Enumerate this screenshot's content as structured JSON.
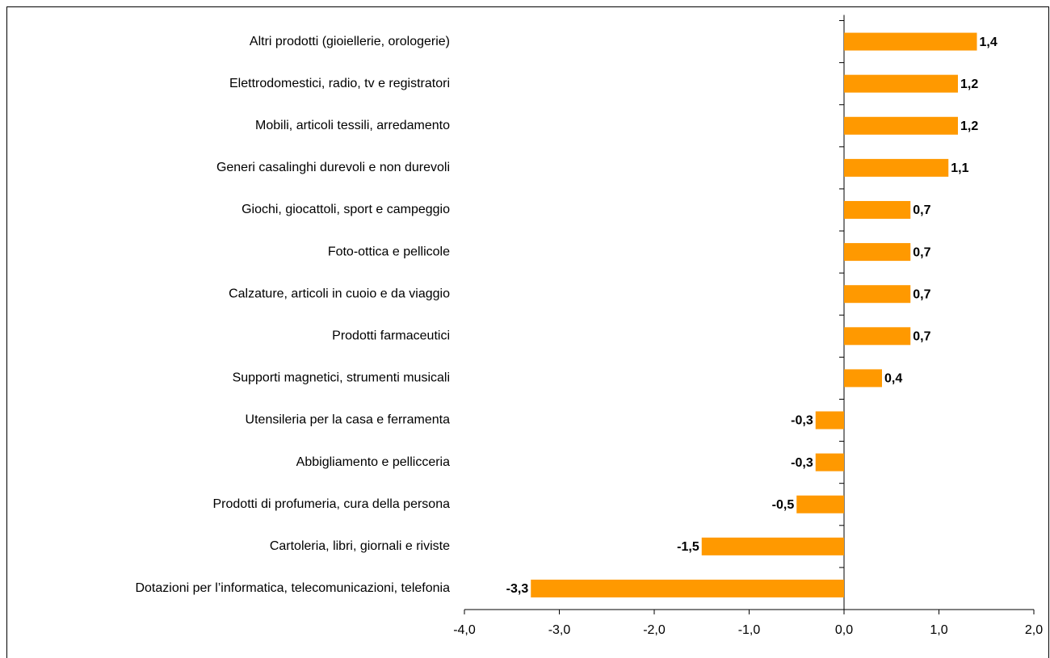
{
  "chart_data": {
    "type": "bar",
    "orientation": "horizontal",
    "categories": [
      "Altri prodotti (gioiellerie, orologerie)",
      "Elettrodomestici, radio, tv e registratori",
      "Mobili, articoli tessili, arredamento",
      "Generi casalinghi durevoli e non durevoli",
      "Giochi, giocattoli, sport e campeggio",
      "Foto-ottica e pellicole",
      "Calzature, articoli in cuoio e da viaggio",
      "Prodotti farmaceutici",
      "Supporti magnetici, strumenti musicali",
      "Utensileria per la casa e ferramenta",
      "Abbigliamento e pellicceria",
      "Prodotti di profumeria, cura della persona",
      "Cartoleria, libri, giornali e riviste",
      "Dotazioni per l’informatica, telecomunicazioni, telefonia"
    ],
    "values": [
      1.4,
      1.2,
      1.2,
      1.1,
      0.7,
      0.7,
      0.7,
      0.7,
      0.4,
      -0.3,
      -0.3,
      -0.5,
      -1.5,
      -3.3
    ],
    "value_labels": [
      "1,4",
      "1,2",
      "1,2",
      "1,1",
      "0,7",
      "0,7",
      "0,7",
      "0,7",
      "0,4",
      "-0,3",
      "-0,3",
      "-0,5",
      "-1,5",
      "-3,3"
    ],
    "color": "#ff9900",
    "xlim": [
      -4,
      2
    ],
    "xticks": [
      {
        "value": -4,
        "label": "-4,0"
      },
      {
        "value": -3,
        "label": "-3,0"
      },
      {
        "value": -2,
        "label": "-2,0"
      },
      {
        "value": -1,
        "label": "-1,0"
      },
      {
        "value": 0,
        "label": "0,0"
      },
      {
        "value": 1,
        "label": "1,0"
      },
      {
        "value": 2,
        "label": "2,0"
      }
    ],
    "grid": false
  }
}
